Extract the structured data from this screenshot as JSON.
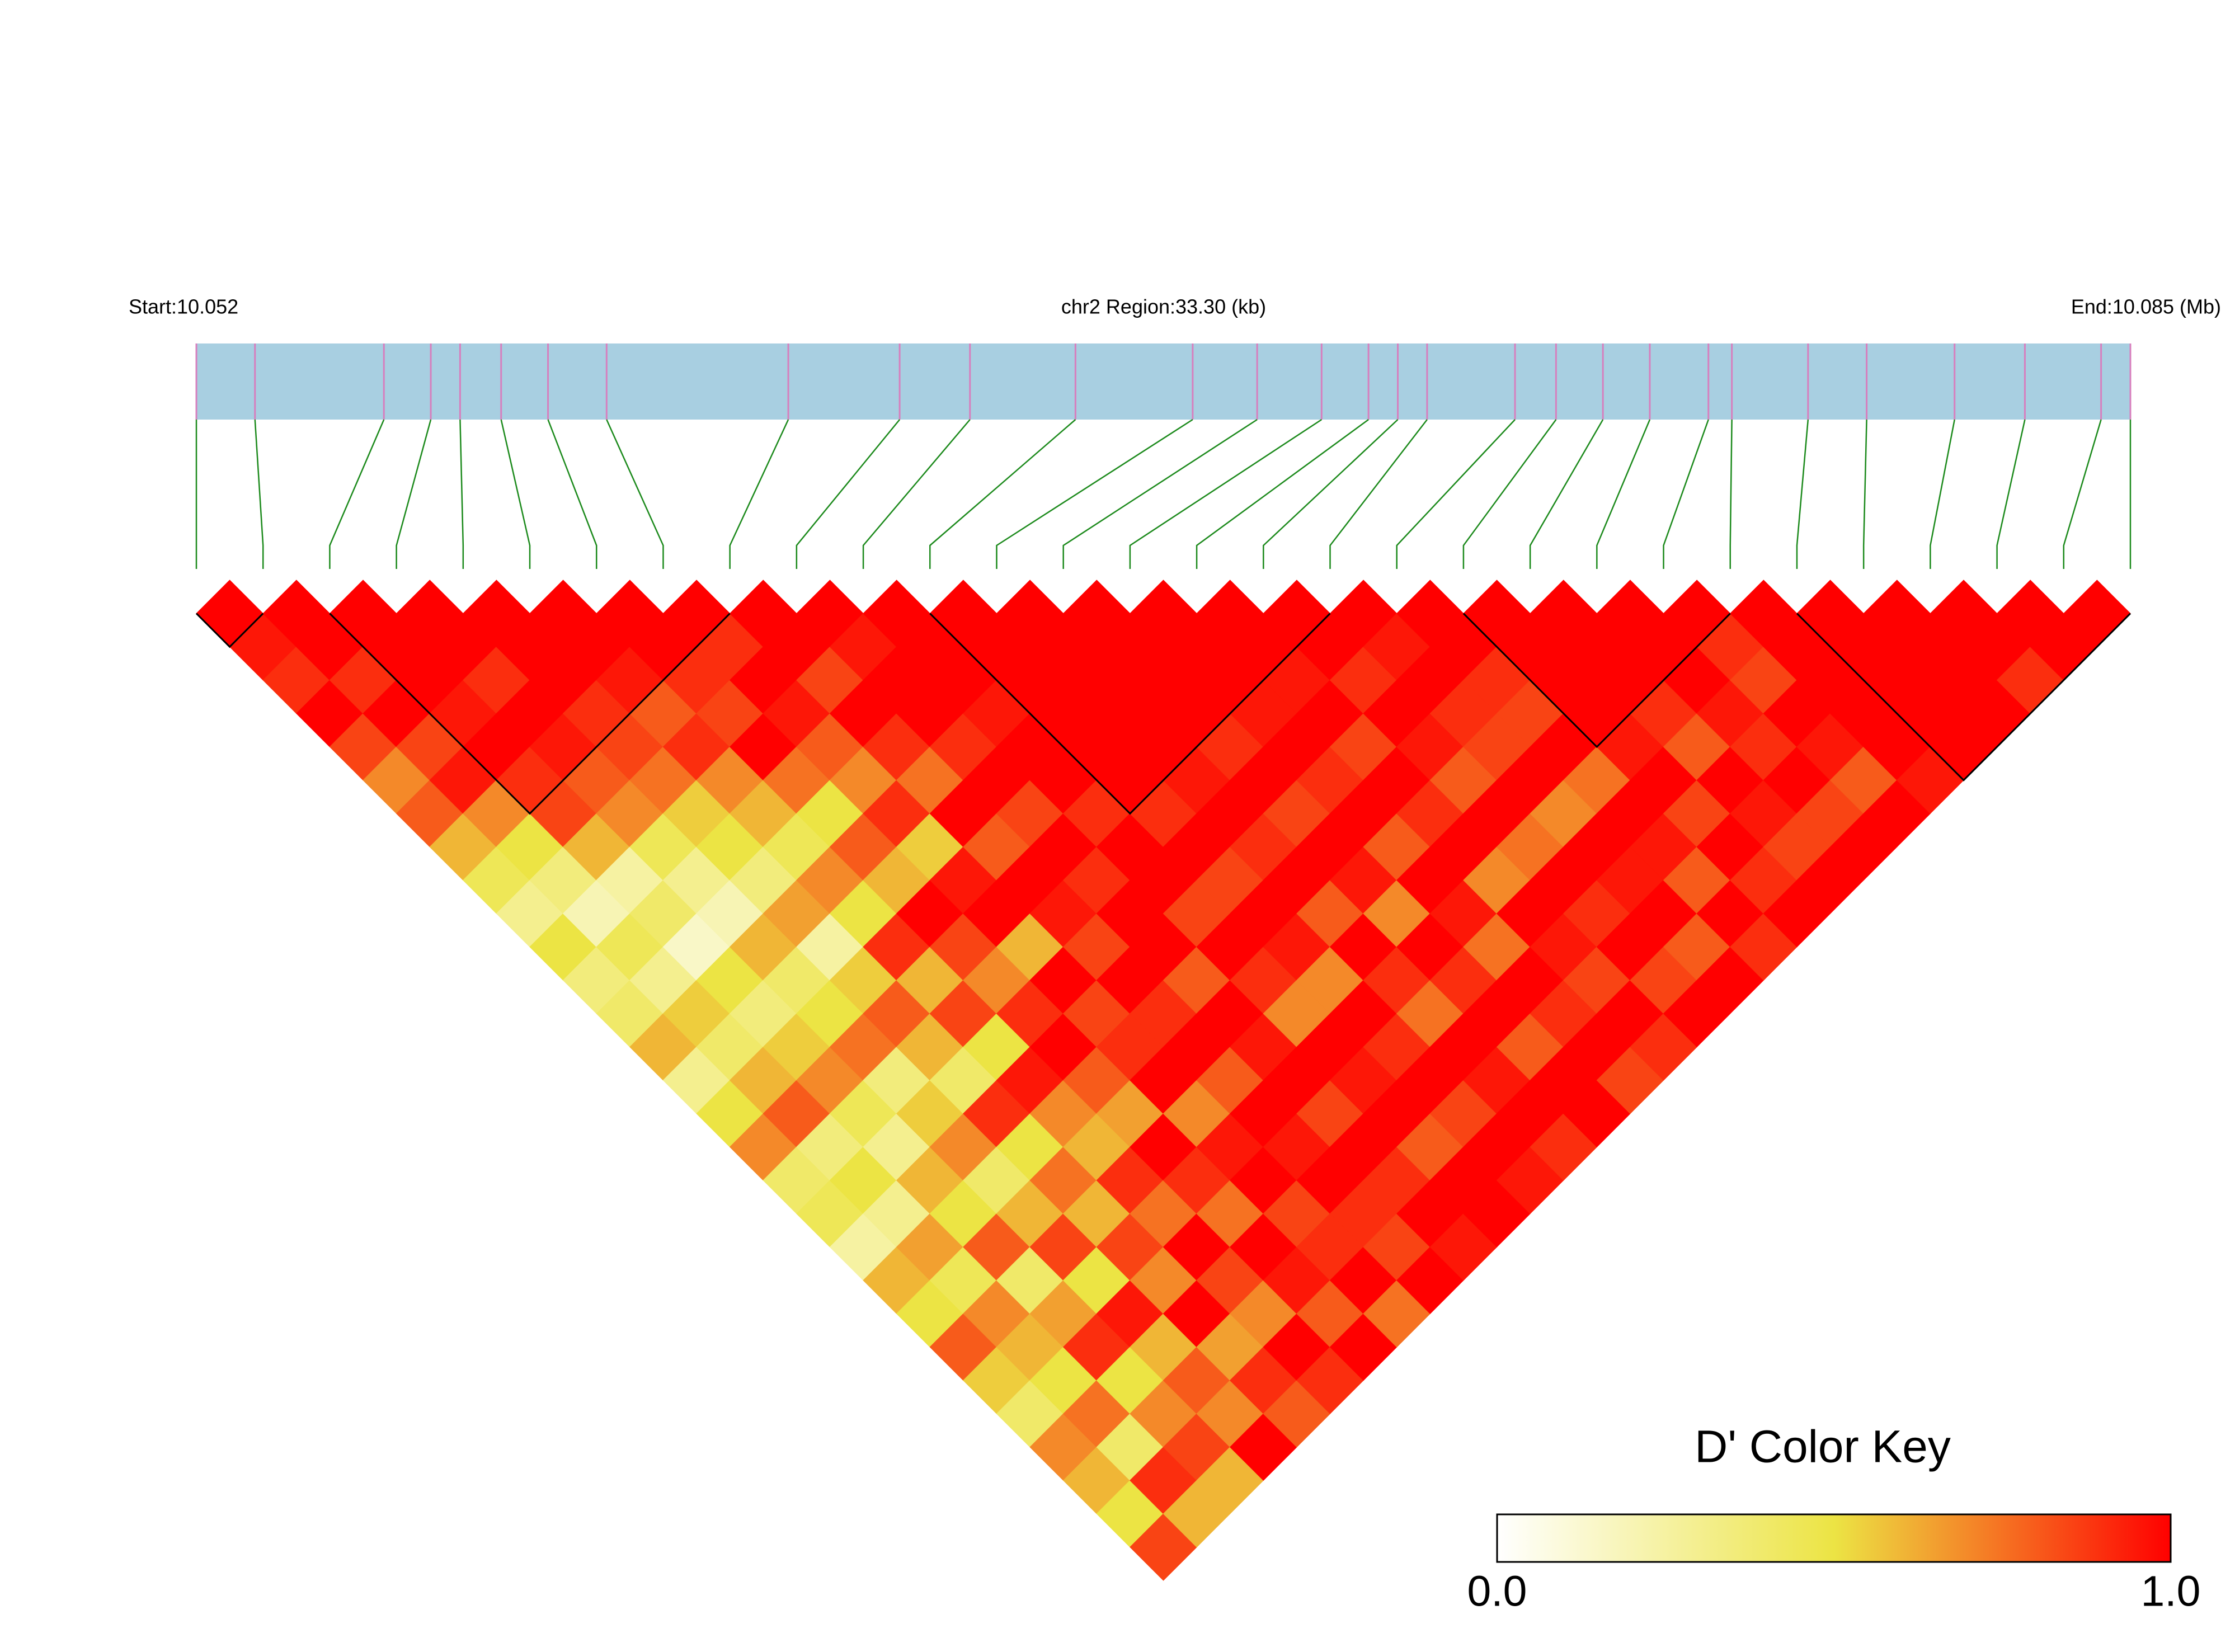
{
  "chart_data": {
    "type": "ld-heatmap",
    "start_label": "Start:10.052",
    "title": "chr2 Region:33.30 (kb)",
    "end_label": "End:10.085 (Mb)",
    "xlim": [
      10.052,
      10.085
    ],
    "snp_positions": [
      10.052,
      10.053,
      10.0552,
      10.056,
      10.0565,
      10.0572,
      10.058,
      10.059,
      10.0621,
      10.064,
      10.0652,
      10.067,
      10.069,
      10.0701,
      10.0712,
      10.072,
      10.0725,
      10.073,
      10.0745,
      10.0752,
      10.076,
      10.0768,
      10.0778,
      10.0782,
      10.0795,
      10.0805,
      10.082,
      10.0832,
      10.0845,
      10.085
    ],
    "d_prime": [
      [
        1,
        0.95,
        0.9,
        1,
        0.85,
        0.7,
        0.8,
        0.6,
        0.45,
        0.3,
        0.5,
        0.35,
        0.4,
        0.6,
        0.3,
        0.5,
        0.7,
        0.4,
        0.45,
        0.25,
        0.6,
        0.5,
        0.8,
        0.55,
        0.4,
        0.7,
        0.6,
        0.5,
        0.85
      ],
      [
        1,
        1,
        0.9,
        1,
        0.85,
        0.95,
        0.7,
        0.5,
        0.35,
        0.2,
        0.45,
        0.3,
        0.55,
        0.4,
        0.6,
        0.8,
        0.35,
        0.5,
        0.3,
        0.65,
        0.45,
        0.7,
        0.6,
        0.5,
        0.75,
        0.4,
        0.9,
        0.6
      ],
      [
        1,
        1,
        1,
        0.95,
        1,
        0.9,
        0.85,
        0.6,
        0.25,
        0.4,
        0.15,
        0.5,
        0.35,
        0.55,
        0.7,
        0.45,
        0.3,
        0.6,
        0.5,
        0.8,
        0.4,
        0.65,
        0.9,
        0.5,
        0.7,
        0.85,
        0.6
      ],
      [
        1,
        1,
        0.9,
        1,
        0.95,
        0.8,
        0.7,
        0.45,
        0.3,
        0.2,
        0.6,
        0.4,
        0.5,
        0.75,
        0.35,
        0.55,
        0.7,
        0.4,
        0.6,
        0.85,
        0.5,
        0.95,
        0.6,
        0.8,
        0.7,
        1
      ],
      [
        1,
        1,
        1,
        0.9,
        0.85,
        0.75,
        0.55,
        0.5,
        0.35,
        0.65,
        0.25,
        0.55,
        0.8,
        0.6,
        0.4,
        0.9,
        0.5,
        0.75,
        0.6,
        0.85,
        0.7,
        1,
        0.65,
        0.9,
        0.8
      ],
      [
        1,
        1,
        0.95,
        0.8,
        0.9,
        0.7,
        0.6,
        0.45,
        0.7,
        0.5,
        0.9,
        0.6,
        0.85,
        0.5,
        0.95,
        0.7,
        0.6,
        0.9,
        0.75,
        1,
        0.85,
        0.7,
        1,
        0.9
      ],
      [
        1,
        1,
        0.9,
        0.85,
        1,
        0.75,
        0.5,
        0.8,
        0.6,
        1,
        0.85,
        0.7,
        0.9,
        1,
        0.8,
        0.65,
        1,
        0.9,
        0.75,
        1,
        0.95,
        0.8,
        1
      ],
      [
        1,
        0.9,
        1,
        0.95,
        0.8,
        0.7,
        0.9,
        0.55,
        0.95,
        1,
        0.6,
        1,
        0.85,
        0.9,
        1,
        0.7,
        0.95,
        1,
        0.85,
        0.9,
        1,
        0.75
      ],
      [
        1,
        1,
        0.85,
        1,
        0.9,
        0.75,
        1,
        0.8,
        1,
        0.95,
        0.85,
        1,
        0.9,
        1,
        0.8,
        1,
        0.95,
        1,
        0.9,
        0.85,
        1
      ],
      [
        1,
        0.95,
        1,
        1,
        0.9,
        1,
        0.85,
        1,
        0.9,
        1,
        1,
        0.8,
        1,
        0.95,
        1,
        0.85,
        1,
        0.9,
        1,
        0.95
      ],
      [
        1,
        1,
        1,
        0.95,
        1,
        1,
        0.9,
        1,
        1,
        0.85,
        1,
        0.9,
        0.7,
        1,
        0.95,
        1,
        0.8,
        1,
        1
      ],
      [
        1,
        1,
        1,
        1,
        1,
        1,
        0.9,
        1,
        0.85,
        1,
        0.95,
        0.7,
        1,
        0.9,
        1,
        0.85,
        1,
        0.95
      ],
      [
        1,
        1,
        1,
        1,
        1,
        0.95,
        1,
        0.9,
        1,
        0.8,
        1,
        0.9,
        0.75,
        1,
        0.95,
        1,
        0.9
      ],
      [
        1,
        1,
        1,
        1,
        0.9,
        1,
        0.85,
        1,
        0.95,
        0.7,
        1,
        0.9,
        1,
        0.8,
        1,
        1
      ],
      [
        1,
        1,
        1,
        0.95,
        1,
        0.9,
        1,
        0.8,
        1,
        0.95,
        0.75,
        1,
        0.9,
        1,
        0.85
      ],
      [
        1,
        1,
        0.95,
        1,
        0.85,
        1,
        0.9,
        1,
        0.7,
        1,
        0.95,
        0.85,
        1,
        0.9
      ],
      [
        1,
        1,
        0.9,
        1,
        0.95,
        0.8,
        1,
        0.75,
        1,
        0.9,
        1,
        0.85,
        1
      ],
      [
        1,
        0.95,
        1,
        0.9,
        0.85,
        1,
        0.7,
        1,
        0.95,
        1,
        0.8,
        1
      ],
      [
        1,
        1,
        0.9,
        0.85,
        1,
        0.75,
        1,
        0.95,
        0.8,
        1,
        0.9
      ],
      [
        1,
        1,
        1,
        1,
        0.95,
        1,
        0.85,
        1,
        0.9,
        1
      ],
      [
        1,
        1,
        1,
        0.9,
        0.8,
        1,
        0.95,
        0.85,
        1
      ],
      [
        1,
        1,
        1,
        0.95,
        0.9,
        1,
        0.85,
        1
      ],
      [
        1,
        0.9,
        0.85,
        1,
        0.95,
        0.8,
        1
      ],
      [
        1,
        1,
        1,
        1,
        1,
        0.95
      ],
      [
        1,
        1,
        1,
        1,
        1
      ],
      [
        1,
        1,
        1,
        1
      ],
      [
        1,
        1,
        0.9
      ],
      [
        1,
        1
      ],
      [
        1
      ]
    ],
    "blocks": [
      [
        0,
        1
      ],
      [
        2,
        8
      ],
      [
        11,
        17
      ],
      [
        19,
        23
      ],
      [
        24,
        29
      ]
    ],
    "bar_color": "#a8cfe1",
    "snp_line_color": "#d77fbe",
    "connector_color": "#1c8a1c",
    "block_color": "#000000",
    "color_scale": [
      "#ffffff",
      "#ece444",
      "#ff0000"
    ],
    "color_key": {
      "title": "D' Color Key",
      "lim": [
        0,
        1
      ],
      "ticks": [
        {
          "value": 0,
          "label": "0.0"
        },
        {
          "value": 1,
          "label": "1.0"
        }
      ]
    }
  }
}
